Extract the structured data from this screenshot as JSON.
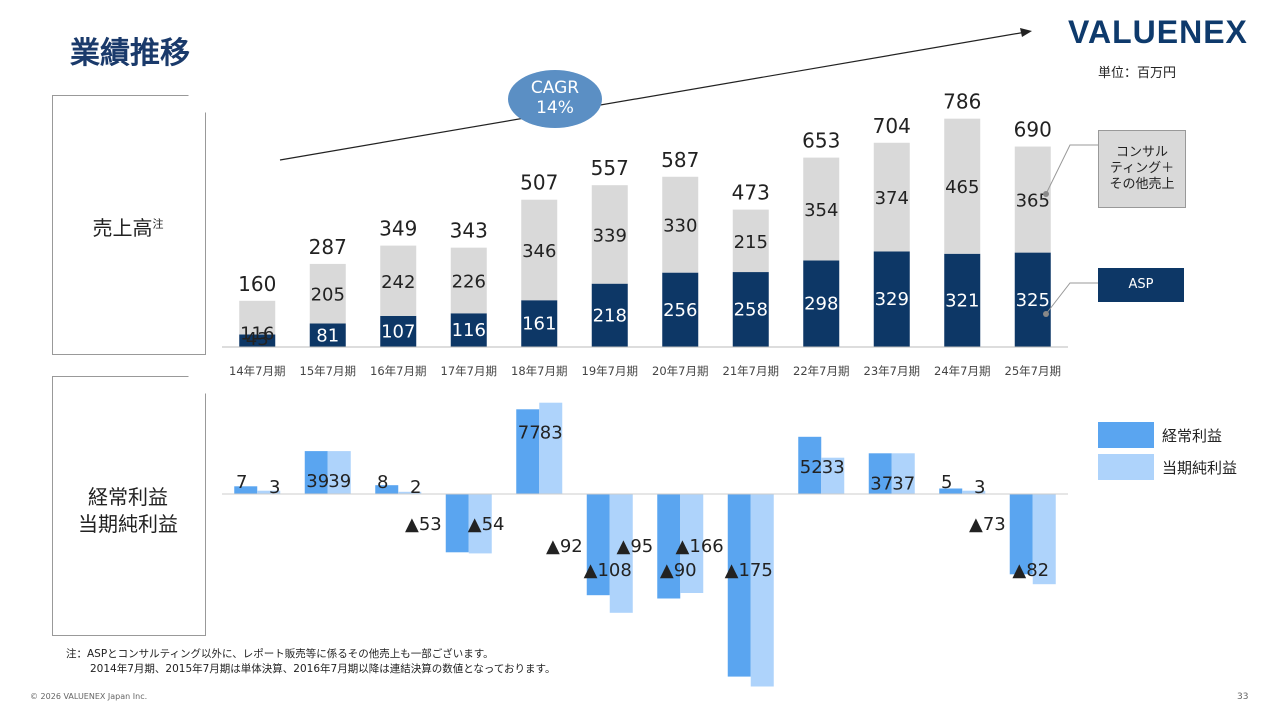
{
  "title": "業績推移",
  "logo": "VALUENEX",
  "unit": "単位：百万円",
  "cagr": {
    "line1": "CAGR",
    "line2": "14%"
  },
  "sections": {
    "revenue": "売上高",
    "revenue_sup": "注",
    "profit_line1": "経常利益",
    "profit_line2": "当期純利益"
  },
  "legend": {
    "consulting": "コンサル\nティング＋\nその他売上",
    "asp": "ASP",
    "ordinary": "経常利益",
    "net": "当期純利益"
  },
  "notes": {
    "line1": "注：ASPとコンサルティング以外に、レポート販売等に係るその他売上も一部ございます。",
    "line2": "2014年7月期、2015年7月期は単体決算、2016年7月期以降は連結決算の数値となっております。"
  },
  "copyright": "© 2026 VALUENEX Japan Inc.",
  "page": "33",
  "colors": {
    "asp": "#0d3766",
    "consulting": "#d9d9d9",
    "ordinary": "#5aa5f0",
    "net": "#aed3fb",
    "title": "#1a3a6b"
  },
  "chart_data": [
    {
      "type": "bar",
      "stacked": true,
      "categories": [
        "14年7月期",
        "15年7月期",
        "16年7月期",
        "17年7月期",
        "18年7月期",
        "19年7月期",
        "20年7月期",
        "21年7月期",
        "22年7月期",
        "23年7月期",
        "24年7月期",
        "25年7月期"
      ],
      "series": [
        {
          "name": "ASP",
          "values": [
            43,
            81,
            107,
            116,
            161,
            218,
            256,
            258,
            298,
            329,
            321,
            325
          ],
          "labels": [
            "43",
            "81",
            "107",
            "116",
            "161",
            "218",
            "256",
            "258",
            "298",
            "329",
            "321",
            "325"
          ]
        },
        {
          "name": "コンサルティング＋その他売上",
          "values": [
            116,
            205,
            242,
            226,
            346,
            339,
            330,
            215,
            354,
            374,
            465,
            365
          ],
          "labels": [
            "116",
            "205",
            "242",
            "226",
            "346",
            "339",
            "330",
            "215",
            "354",
            "374",
            "465",
            "365"
          ]
        }
      ],
      "totals": [
        160,
        287,
        349,
        343,
        507,
        557,
        587,
        473,
        653,
        704,
        786,
        690
      ],
      "total_labels": [
        "160",
        "287",
        "349",
        "343",
        "507",
        "557",
        "587",
        "473",
        "653",
        "704",
        "786",
        "690"
      ],
      "ylim": [
        0,
        800
      ]
    },
    {
      "type": "bar",
      "categories": [
        "14年7月期",
        "15年7月期",
        "16年7月期",
        "17年7月期",
        "18年7月期",
        "19年7月期",
        "20年7月期",
        "21年7月期",
        "22年7月期",
        "23年7月期",
        "24年7月期",
        "25年7月期"
      ],
      "series": [
        {
          "name": "経常利益",
          "values": [
            7,
            39,
            8,
            -53,
            77,
            -92,
            -95,
            -166,
            52,
            37,
            5,
            -73
          ],
          "labels": [
            "7",
            "39",
            "8",
            "▲53",
            "77",
            "▲92",
            "▲95",
            "▲166",
            "52",
            "37",
            "5",
            "▲73"
          ]
        },
        {
          "name": "当期純利益",
          "values": [
            3,
            39,
            2,
            -54,
            83,
            -108,
            -90,
            -175,
            33,
            37,
            3,
            -82
          ],
          "labels": [
            "3",
            "39",
            "2",
            "▲54",
            "83",
            "▲108",
            "▲90",
            "▲175",
            "33",
            "37",
            "3",
            "▲82"
          ]
        }
      ]
    }
  ]
}
